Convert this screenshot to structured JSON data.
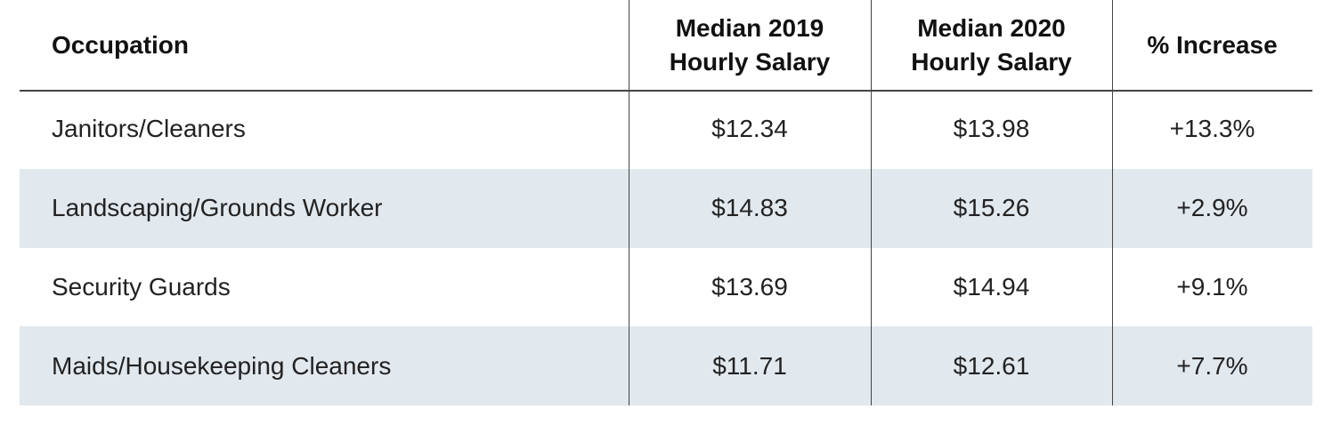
{
  "header": {
    "columns": [
      "Occupation",
      "Median 2019 Hourly Salary",
      "Median 2020 Hourly Salary",
      "% Increase"
    ]
  },
  "table": {
    "rows": [
      [
        "Janitors/Cleaners",
        "$12.34",
        "$13.98",
        "+13.3%"
      ],
      [
        "Landscaping/Grounds Worker",
        "$14.83",
        "$15.26",
        "+2.9%"
      ],
      [
        "Security Guards",
        "$13.69",
        "$14.94",
        "+9.1%"
      ],
      [
        "Maids/Housekeeping Cleaners",
        "$11.71",
        "$12.61",
        "+7.7%"
      ]
    ]
  }
}
